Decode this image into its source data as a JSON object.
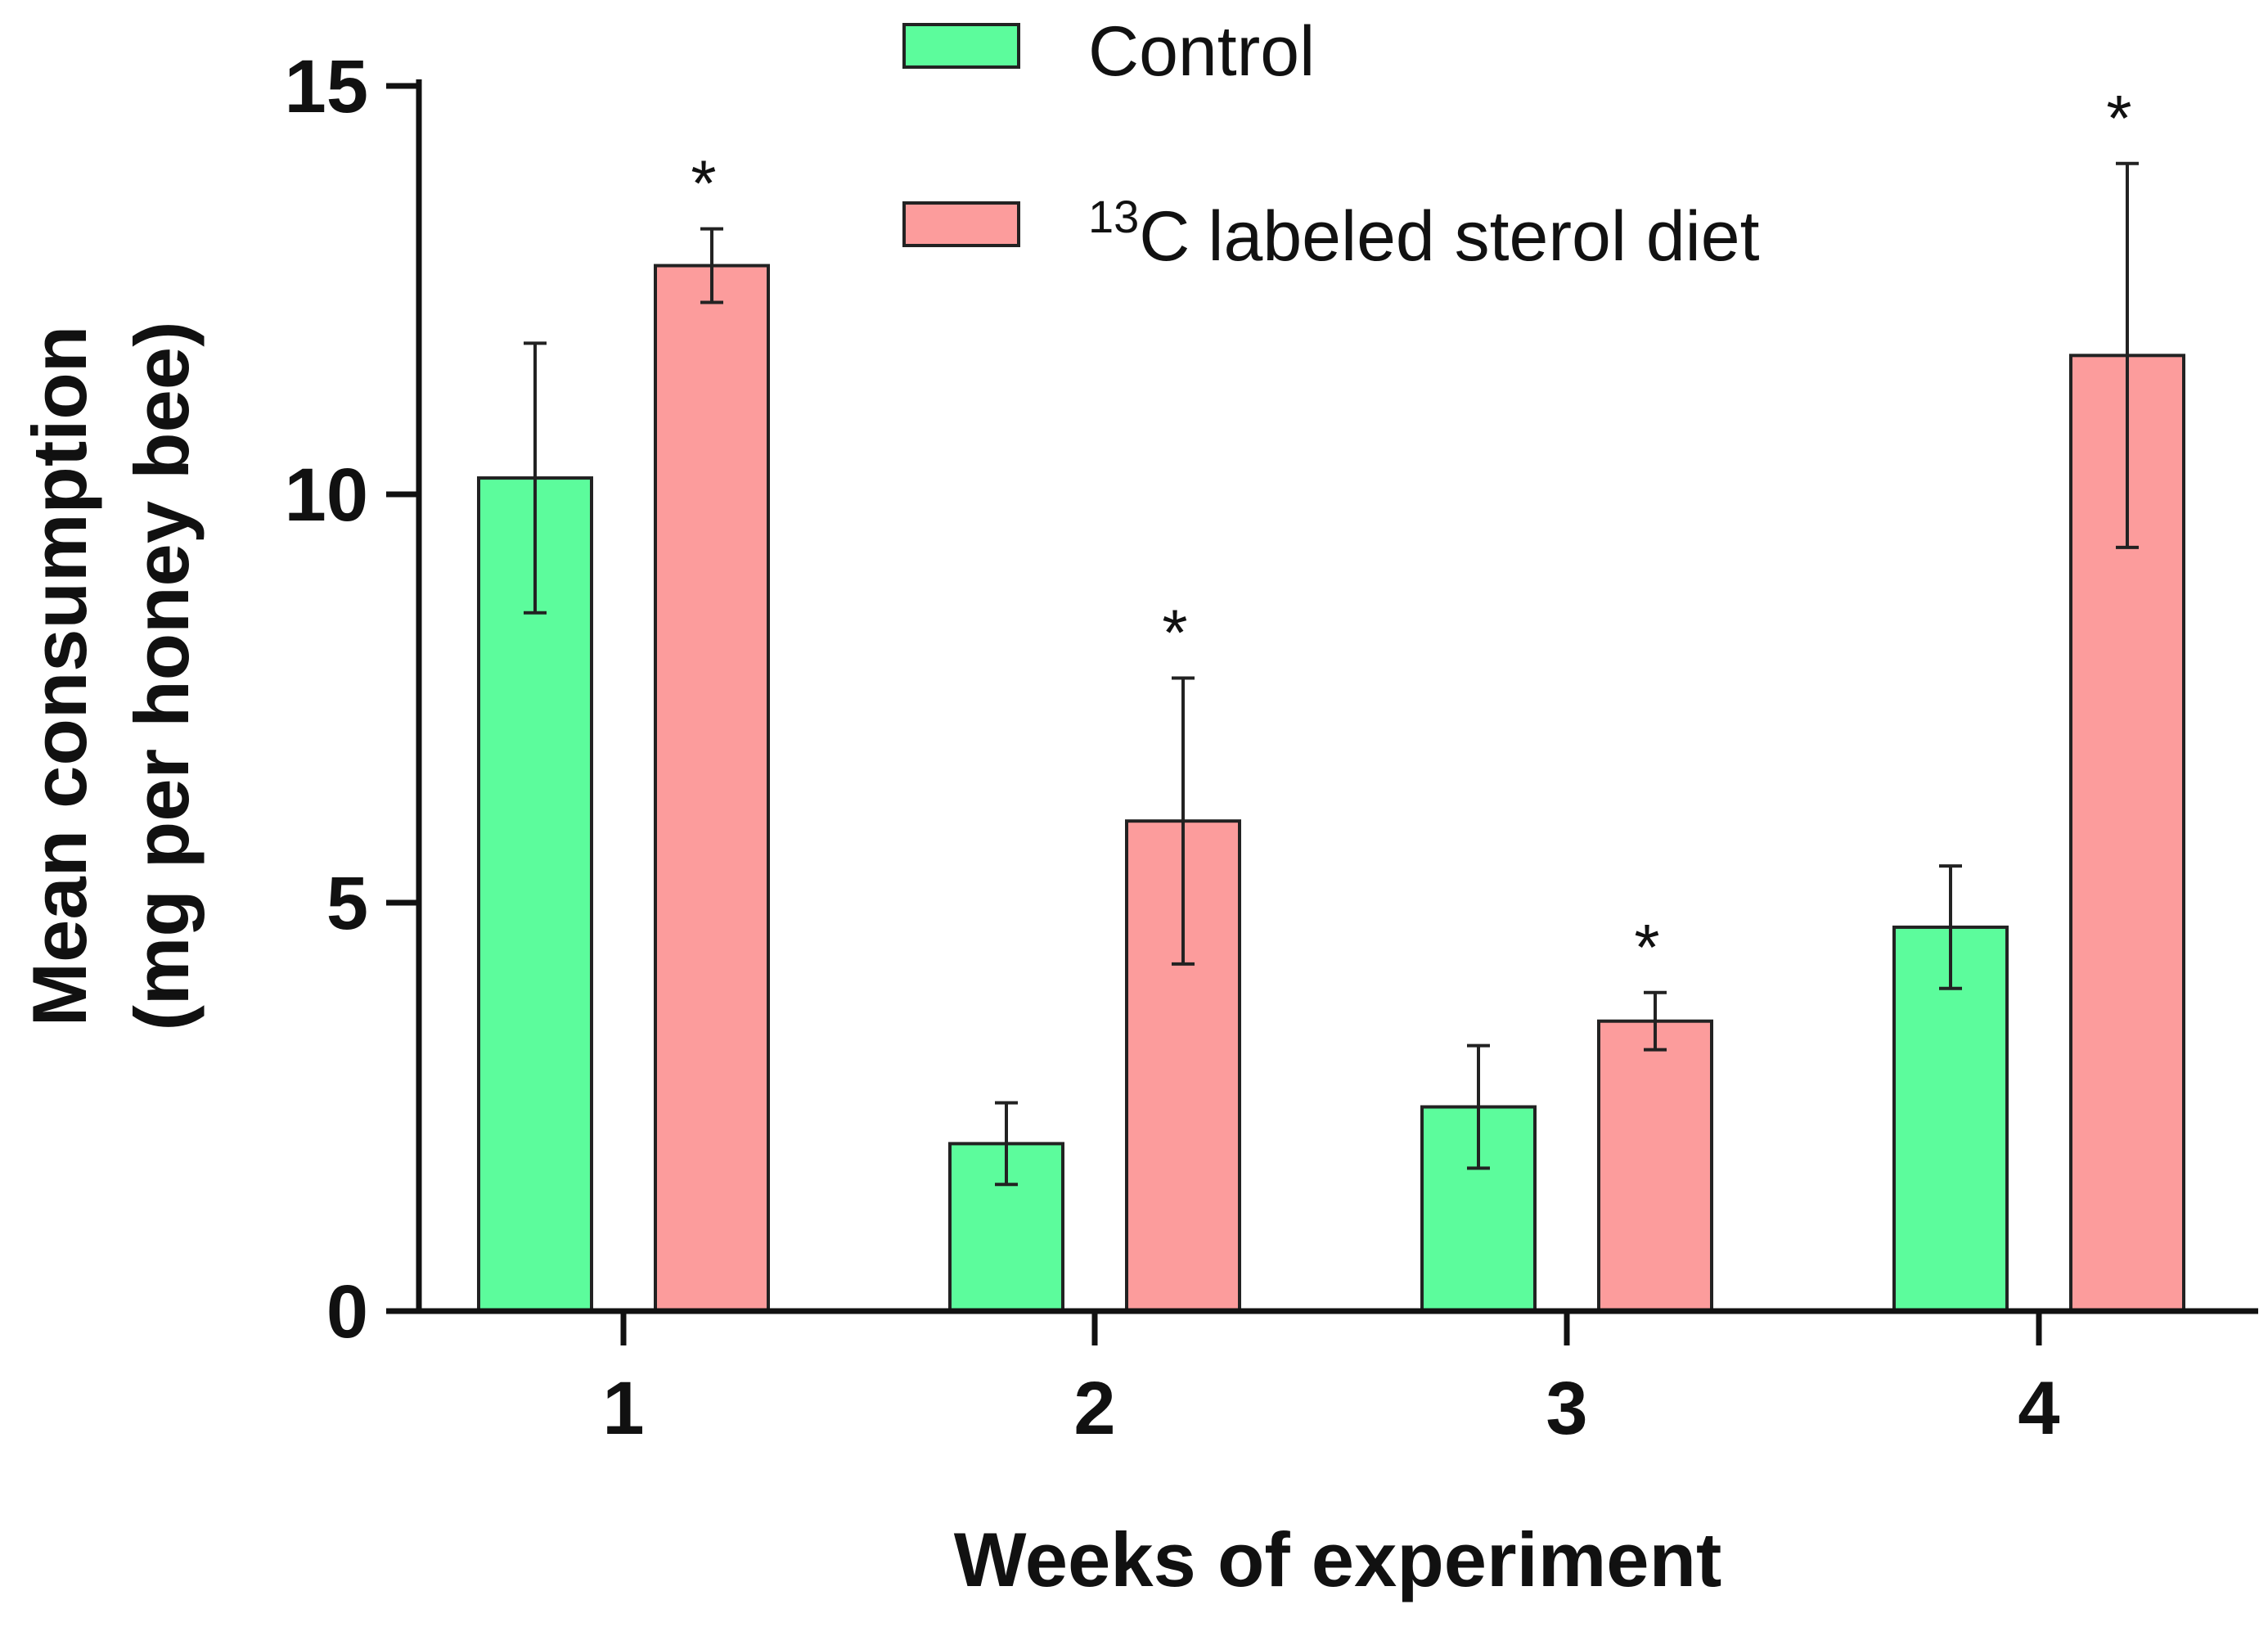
{
  "chart_data": {
    "type": "bar",
    "title": "",
    "xlabel": "Weeks of experiment",
    "ylabel_lines": [
      "Mean consumption",
      "(mg per honey bee)"
    ],
    "categories": [
      "1",
      "2",
      "3",
      "4"
    ],
    "ylim": [
      0,
      15
    ],
    "yticks": [
      "0",
      "5",
      "10",
      "15"
    ],
    "legend_position": "top-center",
    "significance_marker": "*",
    "series": [
      {
        "name": "Control",
        "color": "#5cfc9c",
        "values": [
          10.2,
          2.05,
          2.5,
          4.7
        ],
        "errors": [
          1.65,
          0.5,
          0.75,
          0.75
        ],
        "significant": [
          false,
          false,
          false,
          false
        ]
      },
      {
        "name": "labeled sterol diet",
        "superscript": "13",
        "prefix": "C",
        "color": "#fc9c9c",
        "values": [
          12.8,
          6.0,
          3.55,
          11.7
        ],
        "errors": [
          0.45,
          1.75,
          0.35,
          2.35
        ],
        "significant": [
          true,
          true,
          true,
          true
        ]
      }
    ]
  }
}
